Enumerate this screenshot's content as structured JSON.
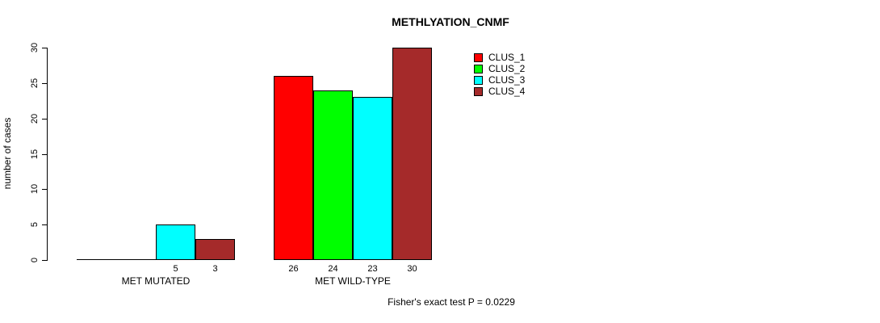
{
  "title": "METHLYATION_CNMF",
  "y_axis": {
    "label": "number of cases",
    "ticks": [
      0,
      5,
      10,
      15,
      20,
      25,
      30
    ]
  },
  "annotation": "Fisher's exact test P = 0.0229",
  "legend": {
    "position": "top-right",
    "entries": [
      {
        "label": "CLUS_1",
        "color": "#ff0000"
      },
      {
        "label": "CLUS_2",
        "color": "#00ff00"
      },
      {
        "label": "CLUS_3",
        "color": "#00ffff"
      },
      {
        "label": "CLUS_4",
        "color": "#a52a2a"
      }
    ]
  },
  "chart_data": {
    "type": "bar",
    "categories": [
      "MET MUTATED",
      "MET WILD-TYPE"
    ],
    "series": [
      {
        "name": "CLUS_1",
        "color": "#ff0000",
        "values": [
          0,
          26
        ]
      },
      {
        "name": "CLUS_2",
        "color": "#00ff00",
        "values": [
          0,
          24
        ]
      },
      {
        "name": "CLUS_3",
        "color": "#00ffff",
        "values": [
          5,
          23
        ]
      },
      {
        "name": "CLUS_4",
        "color": "#a52a2a",
        "values": [
          3,
          30
        ]
      }
    ],
    "title": "METHLYATION_CNMF",
    "xlabel": "",
    "ylabel": "number of cases",
    "ylim": [
      0,
      30
    ],
    "y_ticks": [
      0,
      5,
      10,
      15,
      20,
      25,
      30
    ],
    "bar_value_labels_shown": true,
    "zero_bars_unlabeled": true,
    "legend_position": "top-right",
    "grid": false,
    "annotation": "Fisher's exact test P = 0.0229"
  }
}
